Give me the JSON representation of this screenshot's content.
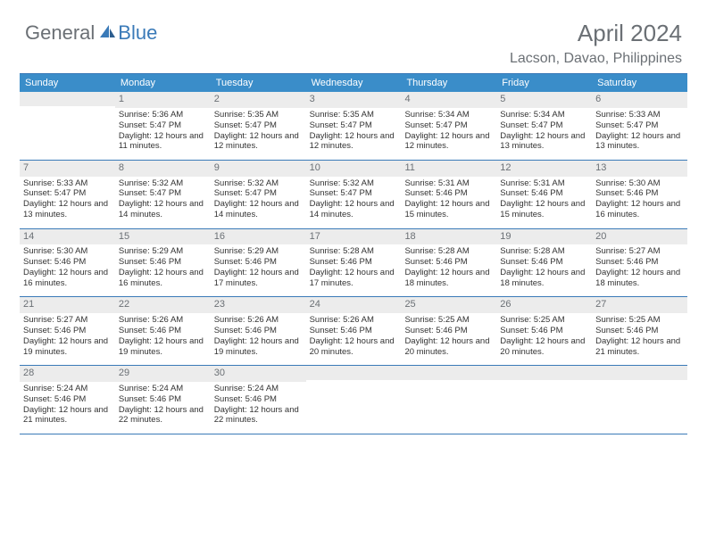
{
  "logo": {
    "text1": "General",
    "text2": "Blue"
  },
  "header": {
    "month_title": "April 2024",
    "location": "Lacson, Davao, Philippines"
  },
  "colors": {
    "header_bg": "#3a8dc9",
    "header_text": "#ffffff",
    "border": "#3a7ab8",
    "daynum_bg": "#ececec",
    "text": "#333333",
    "muted": "#6b7075",
    "logo_blue": "#3a7ab8"
  },
  "day_names": [
    "Sunday",
    "Monday",
    "Tuesday",
    "Wednesday",
    "Thursday",
    "Friday",
    "Saturday"
  ],
  "start_offset": 1,
  "days": [
    {
      "n": 1,
      "sunrise": "5:36 AM",
      "sunset": "5:47 PM",
      "daylight": "12 hours and 11 minutes."
    },
    {
      "n": 2,
      "sunrise": "5:35 AM",
      "sunset": "5:47 PM",
      "daylight": "12 hours and 12 minutes."
    },
    {
      "n": 3,
      "sunrise": "5:35 AM",
      "sunset": "5:47 PM",
      "daylight": "12 hours and 12 minutes."
    },
    {
      "n": 4,
      "sunrise": "5:34 AM",
      "sunset": "5:47 PM",
      "daylight": "12 hours and 12 minutes."
    },
    {
      "n": 5,
      "sunrise": "5:34 AM",
      "sunset": "5:47 PM",
      "daylight": "12 hours and 13 minutes."
    },
    {
      "n": 6,
      "sunrise": "5:33 AM",
      "sunset": "5:47 PM",
      "daylight": "12 hours and 13 minutes."
    },
    {
      "n": 7,
      "sunrise": "5:33 AM",
      "sunset": "5:47 PM",
      "daylight": "12 hours and 13 minutes."
    },
    {
      "n": 8,
      "sunrise": "5:32 AM",
      "sunset": "5:47 PM",
      "daylight": "12 hours and 14 minutes."
    },
    {
      "n": 9,
      "sunrise": "5:32 AM",
      "sunset": "5:47 PM",
      "daylight": "12 hours and 14 minutes."
    },
    {
      "n": 10,
      "sunrise": "5:32 AM",
      "sunset": "5:47 PM",
      "daylight": "12 hours and 14 minutes."
    },
    {
      "n": 11,
      "sunrise": "5:31 AM",
      "sunset": "5:46 PM",
      "daylight": "12 hours and 15 minutes."
    },
    {
      "n": 12,
      "sunrise": "5:31 AM",
      "sunset": "5:46 PM",
      "daylight": "12 hours and 15 minutes."
    },
    {
      "n": 13,
      "sunrise": "5:30 AM",
      "sunset": "5:46 PM",
      "daylight": "12 hours and 16 minutes."
    },
    {
      "n": 14,
      "sunrise": "5:30 AM",
      "sunset": "5:46 PM",
      "daylight": "12 hours and 16 minutes."
    },
    {
      "n": 15,
      "sunrise": "5:29 AM",
      "sunset": "5:46 PM",
      "daylight": "12 hours and 16 minutes."
    },
    {
      "n": 16,
      "sunrise": "5:29 AM",
      "sunset": "5:46 PM",
      "daylight": "12 hours and 17 minutes."
    },
    {
      "n": 17,
      "sunrise": "5:28 AM",
      "sunset": "5:46 PM",
      "daylight": "12 hours and 17 minutes."
    },
    {
      "n": 18,
      "sunrise": "5:28 AM",
      "sunset": "5:46 PM",
      "daylight": "12 hours and 18 minutes."
    },
    {
      "n": 19,
      "sunrise": "5:28 AM",
      "sunset": "5:46 PM",
      "daylight": "12 hours and 18 minutes."
    },
    {
      "n": 20,
      "sunrise": "5:27 AM",
      "sunset": "5:46 PM",
      "daylight": "12 hours and 18 minutes."
    },
    {
      "n": 21,
      "sunrise": "5:27 AM",
      "sunset": "5:46 PM",
      "daylight": "12 hours and 19 minutes."
    },
    {
      "n": 22,
      "sunrise": "5:26 AM",
      "sunset": "5:46 PM",
      "daylight": "12 hours and 19 minutes."
    },
    {
      "n": 23,
      "sunrise": "5:26 AM",
      "sunset": "5:46 PM",
      "daylight": "12 hours and 19 minutes."
    },
    {
      "n": 24,
      "sunrise": "5:26 AM",
      "sunset": "5:46 PM",
      "daylight": "12 hours and 20 minutes."
    },
    {
      "n": 25,
      "sunrise": "5:25 AM",
      "sunset": "5:46 PM",
      "daylight": "12 hours and 20 minutes."
    },
    {
      "n": 26,
      "sunrise": "5:25 AM",
      "sunset": "5:46 PM",
      "daylight": "12 hours and 20 minutes."
    },
    {
      "n": 27,
      "sunrise": "5:25 AM",
      "sunset": "5:46 PM",
      "daylight": "12 hours and 21 minutes."
    },
    {
      "n": 28,
      "sunrise": "5:24 AM",
      "sunset": "5:46 PM",
      "daylight": "12 hours and 21 minutes."
    },
    {
      "n": 29,
      "sunrise": "5:24 AM",
      "sunset": "5:46 PM",
      "daylight": "12 hours and 22 minutes."
    },
    {
      "n": 30,
      "sunrise": "5:24 AM",
      "sunset": "5:46 PM",
      "daylight": "12 hours and 22 minutes."
    }
  ],
  "labels": {
    "sunrise": "Sunrise:",
    "sunset": "Sunset:",
    "daylight": "Daylight:"
  }
}
